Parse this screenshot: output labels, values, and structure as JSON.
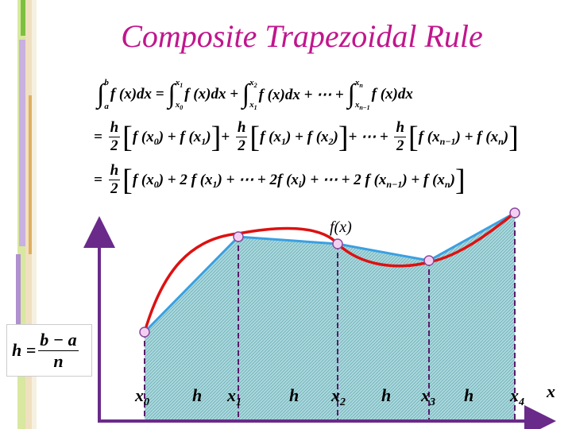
{
  "title": "Composite Trapezoidal Rule",
  "equations": [
    [
      {
        "op": "∫",
        "lo": "a",
        "hi": "b"
      },
      {
        "text": "f (x)dx = "
      },
      {
        "op": "∫",
        "lo": "x",
        "lo_sub": "0",
        "hi": "x",
        "hi_sub": "1"
      },
      {
        "text": "f (x)dx + "
      },
      {
        "op": "∫",
        "lo": "x",
        "lo_sub": "1",
        "hi": "x",
        "hi_sub": "2"
      },
      {
        "text": "f (x)dx + ⋯ + "
      },
      {
        "op": "∫",
        "lo": "x",
        "lo_sub": "n−1",
        "hi": "x",
        "hi_sub": "n"
      },
      {
        "text": "f (x)dx"
      }
    ],
    [
      {
        "text": "= "
      },
      {
        "num": "h",
        "den": "2"
      },
      {
        "big": "["
      },
      {
        "text": "f (x"
      },
      {
        "sub": "0"
      },
      {
        "text": ") + f (x"
      },
      {
        "sub": "1"
      },
      {
        "text": ")"
      },
      {
        "big": "]"
      },
      {
        "text": "+ "
      },
      {
        "num": "h",
        "den": "2"
      },
      {
        "big": "["
      },
      {
        "text": "f (x"
      },
      {
        "sub": "1"
      },
      {
        "text": ") + f (x"
      },
      {
        "sub": "2"
      },
      {
        "text": ")"
      },
      {
        "big": "]"
      },
      {
        "text": "+ ⋯ + "
      },
      {
        "num": "h",
        "den": "2"
      },
      {
        "big": "["
      },
      {
        "text": "f (x"
      },
      {
        "sub": "n−1"
      },
      {
        "text": ") + f (x"
      },
      {
        "sub": "n"
      },
      {
        "text": ")"
      },
      {
        "big": "]"
      }
    ],
    [
      {
        "text": "= "
      },
      {
        "num": "h",
        "den": "2"
      },
      {
        "big": "["
      },
      {
        "text": "f (x"
      },
      {
        "sub": "0"
      },
      {
        "text": ") + 2 f (x"
      },
      {
        "sub": "1"
      },
      {
        "text": ") + ⋯ + 2f (x"
      },
      {
        "sub": "i"
      },
      {
        "text": ") + ⋯ + 2 f (x"
      },
      {
        "sub": "n−1"
      },
      {
        "text": ") + f (x"
      },
      {
        "sub": "n"
      },
      {
        "text": ")"
      },
      {
        "big": "]"
      }
    ]
  ],
  "h_formula": {
    "lhs": "h =",
    "num": "b − a",
    "den": "n"
  },
  "graph": {
    "function_label": "f(x)",
    "axis_label": "x",
    "x_labels": [
      {
        "base": "x",
        "sub": "0"
      },
      {
        "base": "h"
      },
      {
        "base": "x",
        "sub": "1"
      },
      {
        "base": "h"
      },
      {
        "base": "x",
        "sub": "2"
      },
      {
        "base": "h"
      },
      {
        "base": "x",
        "sub": "3"
      },
      {
        "base": "h"
      },
      {
        "base": "x",
        "sub": "4"
      }
    ]
  }
}
